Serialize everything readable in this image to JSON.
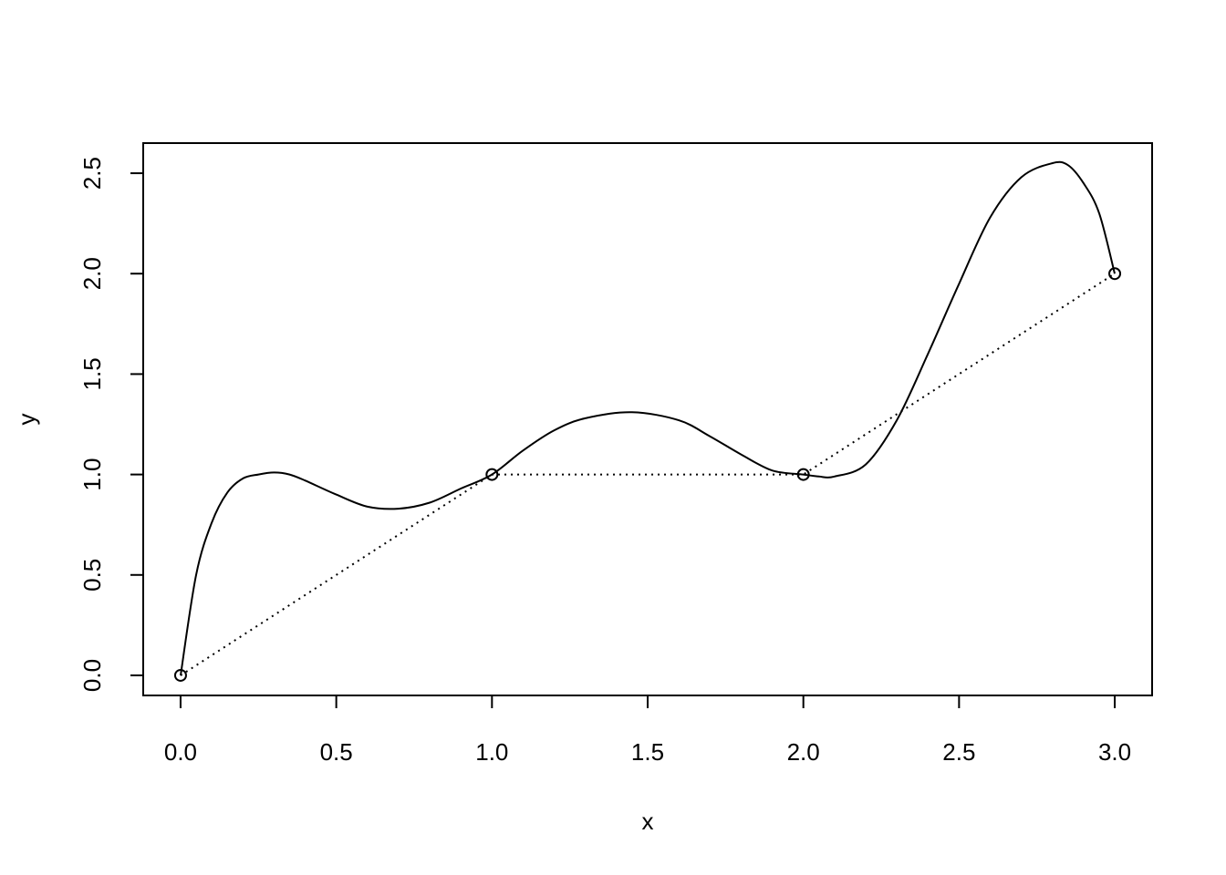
{
  "chart_data": {
    "type": "line",
    "title": "",
    "xlabel": "x",
    "ylabel": "y",
    "xlim": [
      -0.12,
      3.12
    ],
    "ylim": [
      -0.1,
      2.65
    ],
    "x_ticks": [
      "0.0",
      "0.5",
      "1.0",
      "1.5",
      "2.0",
      "2.5",
      "3.0"
    ],
    "y_ticks": [
      "0.0",
      "0.5",
      "1.0",
      "1.5",
      "2.0",
      "2.5"
    ],
    "grid": false,
    "legend": "none",
    "colors": {
      "line": "#000000",
      "background": "#ffffff"
    },
    "points": {
      "x": [
        0,
        1,
        2,
        3
      ],
      "y": [
        0,
        1,
        1,
        2
      ],
      "marker": "open-circle"
    },
    "series": [
      {
        "style": "dotted",
        "x": [
          0,
          1,
          2,
          3
        ],
        "y": [
          0,
          1,
          1,
          2
        ]
      },
      {
        "style": "solid",
        "x": [
          0,
          0.05,
          0.1,
          0.15,
          0.2,
          0.25,
          0.3,
          0.35,
          0.4,
          0.5,
          0.6,
          0.7,
          0.8,
          0.9,
          1.0,
          1.1,
          1.2,
          1.3,
          1.45,
          1.6,
          1.7,
          1.8,
          1.9,
          2.0,
          2.05,
          2.1,
          2.2,
          2.3,
          2.4,
          2.5,
          2.6,
          2.7,
          2.8,
          2.85,
          2.9,
          2.95,
          3.0
        ],
        "y": [
          0.0,
          0.5,
          0.76,
          0.91,
          0.98,
          1.0,
          1.01,
          1.0,
          0.97,
          0.9,
          0.84,
          0.83,
          0.86,
          0.93,
          1.0,
          1.12,
          1.22,
          1.28,
          1.31,
          1.27,
          1.19,
          1.1,
          1.02,
          1.0,
          0.99,
          0.99,
          1.05,
          1.27,
          1.6,
          1.95,
          2.28,
          2.48,
          2.55,
          2.54,
          2.45,
          2.3,
          2.0
        ]
      }
    ]
  }
}
